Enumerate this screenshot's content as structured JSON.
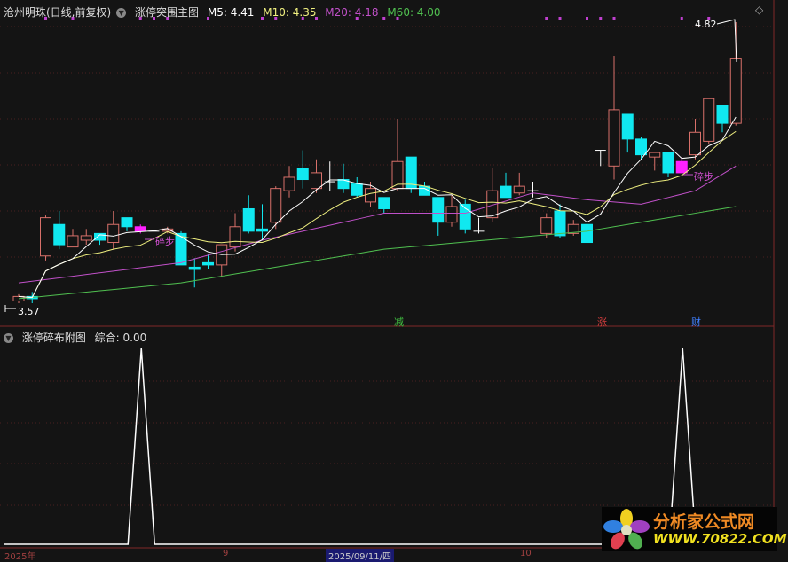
{
  "header": {
    "stock": "沧州明珠(日线,前复权)",
    "indicator": "涨停突围主图",
    "ma5": "M5: 4.41",
    "ma10": "M10: 4.35",
    "ma20": "M20: 4.18",
    "ma60": "M60: 4.00"
  },
  "sub_header": {
    "indicator": "涨停碎布附图",
    "value": "综合: 0.00"
  },
  "annotations": {
    "high_label": "4.82",
    "low_label": "3.57",
    "step_label": "碎步",
    "signals": [
      {
        "index": 28,
        "text": "减",
        "color": "#40c040"
      },
      {
        "index": 43,
        "text": "涨",
        "color": "#e04040"
      },
      {
        "index": 50,
        "text": "财",
        "color": "#4080ff"
      }
    ]
  },
  "x_axis": {
    "labels": [
      "2025年",
      "9",
      "2025/09/11/四",
      "10"
    ]
  },
  "logo": {
    "name": "分析家公式网",
    "url": "WWW.70822.COM"
  },
  "colors": {
    "up": "#d8706a",
    "down": "#10e8f0",
    "step": "#ff20ff",
    "ma5": "#ffffff",
    "ma10": "#f0f080",
    "ma20": "#c050c8",
    "ma60": "#50c050",
    "dots": "#c040d0"
  },
  "chart_data": [
    {
      "type": "candlestick",
      "title": "涨停突围主图",
      "ylim": [
        3.57,
        4.82
      ],
      "step_indices": [
        9,
        49
      ],
      "dot_indices": [
        2,
        4,
        9,
        10,
        11,
        14,
        18,
        19,
        21,
        22,
        25,
        27,
        28,
        39,
        40,
        42,
        43,
        44,
        49,
        51
      ],
      "ohlc": [
        [
          3.58,
          3.6,
          3.61,
          3.57
        ],
        [
          3.6,
          3.59,
          3.62,
          3.57
        ],
        [
          3.78,
          3.95,
          3.96,
          3.76
        ],
        [
          3.92,
          3.83,
          3.98,
          3.81
        ],
        [
          3.82,
          3.87,
          3.9,
          3.82
        ],
        [
          3.85,
          3.87,
          3.9,
          3.83
        ],
        [
          3.88,
          3.85,
          3.88,
          3.83
        ],
        [
          3.84,
          3.92,
          3.98,
          3.81
        ],
        [
          3.95,
          3.91,
          3.95,
          3.89
        ],
        [
          3.91,
          3.89,
          3.92,
          3.88
        ],
        [
          3.89,
          3.89,
          3.91,
          3.88
        ],
        [
          3.89,
          3.9,
          3.91,
          3.88
        ],
        [
          3.88,
          3.74,
          3.89,
          3.74
        ],
        [
          3.73,
          3.72,
          3.77,
          3.64
        ],
        [
          3.75,
          3.74,
          3.79,
          3.72
        ],
        [
          3.74,
          3.83,
          3.83,
          3.69
        ],
        [
          3.82,
          3.91,
          3.97,
          3.8
        ],
        [
          3.99,
          3.89,
          4.05,
          3.88
        ],
        [
          3.9,
          3.89,
          4.01,
          3.85
        ],
        [
          3.93,
          4.08,
          4.09,
          3.9
        ],
        [
          4.07,
          4.13,
          4.18,
          4.04
        ],
        [
          4.17,
          4.12,
          4.25,
          4.08
        ],
        [
          4.08,
          4.15,
          4.21,
          4.06
        ],
        [
          4.11,
          4.11,
          4.2,
          4.07
        ],
        [
          4.12,
          4.08,
          4.19,
          4.06
        ],
        [
          4.1,
          4.05,
          4.13,
          4.04
        ],
        [
          4.02,
          4.08,
          4.11,
          4.0
        ],
        [
          4.04,
          3.99,
          4.04,
          3.97
        ],
        [
          4.08,
          4.2,
          4.39,
          4.07
        ],
        [
          4.22,
          4.08,
          4.22,
          4.06
        ],
        [
          4.09,
          4.05,
          4.11,
          4.05
        ],
        [
          4.04,
          3.93,
          4.04,
          3.87
        ],
        [
          3.93,
          4.0,
          4.05,
          3.91
        ],
        [
          4.01,
          3.9,
          4.03,
          3.88
        ],
        [
          3.89,
          3.89,
          3.95,
          3.88
        ],
        [
          3.95,
          4.07,
          4.17,
          3.93
        ],
        [
          4.09,
          4.04,
          4.15,
          4.04
        ],
        [
          4.06,
          4.09,
          4.15,
          4.05
        ],
        [
          4.07,
          4.07,
          4.11,
          4.04
        ],
        [
          3.88,
          3.95,
          3.97,
          3.86
        ],
        [
          3.98,
          3.87,
          4.01,
          3.86
        ],
        [
          3.88,
          3.92,
          3.94,
          3.87
        ],
        [
          3.92,
          3.84,
          3.92,
          3.82
        ],
        [
          4.25,
          4.25,
          4.25,
          4.18
        ],
        [
          4.18,
          4.43,
          4.67,
          4.12
        ],
        [
          4.41,
          4.3,
          4.41,
          4.24
        ],
        [
          4.3,
          4.23,
          4.31,
          4.21
        ],
        [
          4.22,
          4.24,
          4.24,
          4.16
        ],
        [
          4.24,
          4.15,
          4.24,
          4.13
        ],
        [
          4.2,
          4.15,
          4.22,
          4.15
        ],
        [
          4.23,
          4.33,
          4.39,
          4.21
        ],
        [
          4.29,
          4.48,
          4.48,
          4.28
        ],
        [
          4.45,
          4.37,
          4.45,
          4.33
        ],
        [
          4.37,
          4.66,
          4.82,
          4.36
        ]
      ],
      "ma20": [
        [
          0,
          3.66
        ],
        [
          12,
          3.75
        ],
        [
          18,
          3.85
        ],
        [
          27,
          3.97
        ],
        [
          33,
          3.97
        ],
        [
          38,
          4.06
        ],
        [
          42,
          4.03
        ],
        [
          46,
          4.01
        ],
        [
          50,
          4.07
        ],
        [
          53,
          4.18
        ]
      ],
      "ma60": [
        [
          0,
          3.59
        ],
        [
          12,
          3.66
        ],
        [
          27,
          3.81
        ],
        [
          42,
          3.89
        ],
        [
          53,
          4.0
        ]
      ]
    },
    {
      "type": "line",
      "title": "涨停碎布附图",
      "spike_indices": [
        9,
        49
      ],
      "ylim": [
        0,
        1
      ]
    }
  ]
}
